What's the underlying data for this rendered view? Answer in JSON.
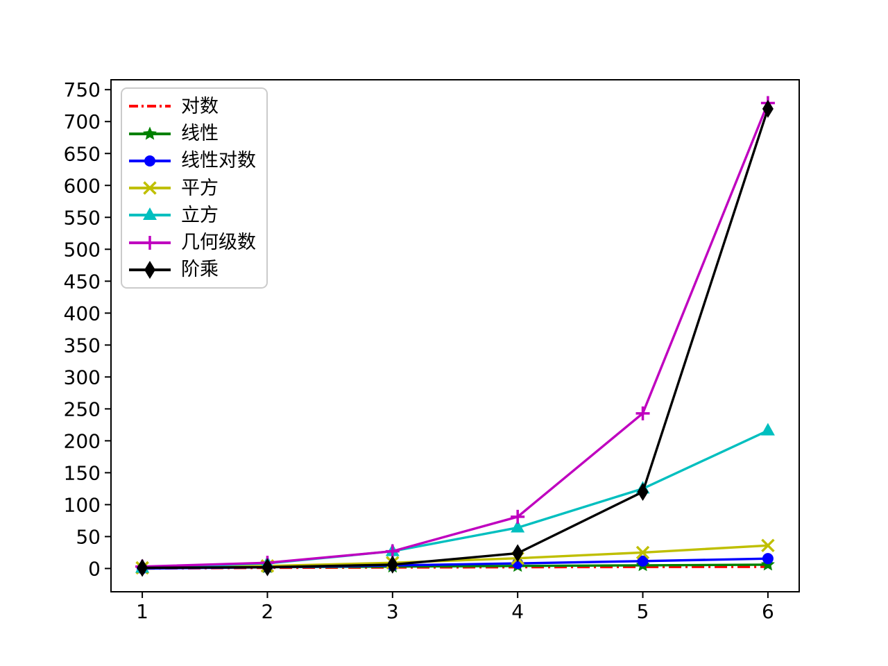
{
  "figure": {
    "background": "#ffffff",
    "axis_color": "#000000"
  },
  "chart_data": {
    "type": "line",
    "x": [
      1,
      2,
      3,
      4,
      5,
      6
    ],
    "series": [
      {
        "id": "log",
        "name": "对数",
        "color": "#ff0000",
        "linestyle": "dashdot",
        "marker": "none",
        "values": [
          0,
          1,
          1.58,
          2,
          2.32,
          2.58
        ]
      },
      {
        "id": "linear",
        "name": "线性",
        "color": "#008000",
        "linestyle": "solid",
        "marker": "star",
        "values": [
          1,
          2,
          3,
          4,
          5,
          6
        ]
      },
      {
        "id": "nlogn",
        "name": "线性对数",
        "color": "#0000ff",
        "linestyle": "solid",
        "marker": "circle",
        "values": [
          0,
          2,
          4.75,
          8,
          11.61,
          15.51
        ]
      },
      {
        "id": "square",
        "name": "平方",
        "color": "#bfbf00",
        "linestyle": "solid",
        "marker": "x",
        "values": [
          1,
          4,
          9,
          16,
          25,
          36
        ]
      },
      {
        "id": "cube",
        "name": "立方",
        "color": "#00bfbf",
        "linestyle": "solid",
        "marker": "triangle-up",
        "values": [
          1,
          8,
          27,
          64,
          125,
          216
        ]
      },
      {
        "id": "geometric",
        "name": "几何级数",
        "color": "#bf00bf",
        "linestyle": "solid",
        "marker": "plus",
        "values": [
          3,
          9,
          27,
          81,
          243,
          729
        ]
      },
      {
        "id": "factorial",
        "name": "阶乘",
        "color": "#000000",
        "linestyle": "solid",
        "marker": "thin-diamond",
        "values": [
          1,
          2,
          6,
          24,
          120,
          720
        ]
      }
    ],
    "xlim": [
      0.75,
      6.25
    ],
    "ylim": [
      -36.45,
      765.45
    ],
    "xticks": [
      "1",
      "2",
      "3",
      "4",
      "5",
      "6"
    ],
    "yticks": [
      "0",
      "50",
      "100",
      "150",
      "200",
      "250",
      "300",
      "350",
      "400",
      "450",
      "500",
      "550",
      "600",
      "650",
      "700",
      "750"
    ],
    "grid": false,
    "legend": {
      "position": "upper-left",
      "border_color": "#cbcbcb",
      "labels": [
        "对数",
        "线性",
        "线性对数",
        "平方",
        "立方",
        "几何级数",
        "阶乘"
      ]
    }
  }
}
